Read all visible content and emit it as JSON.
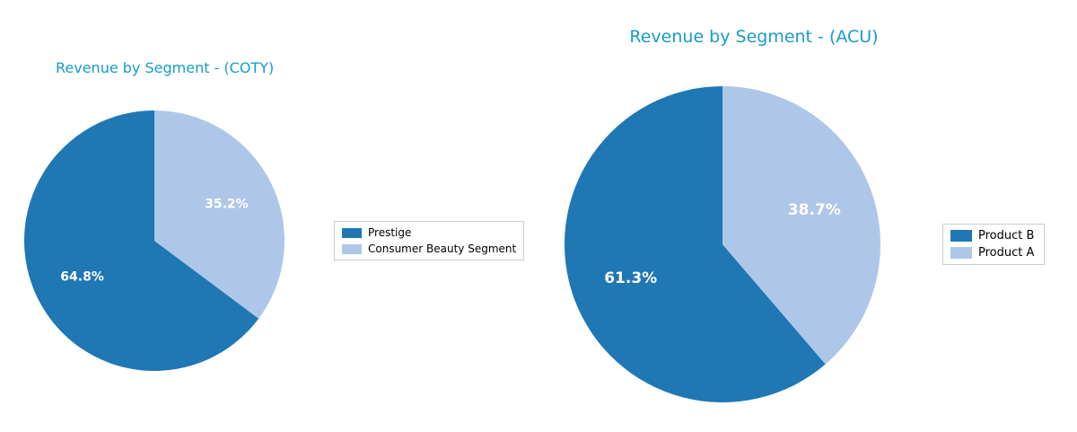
{
  "figure": {
    "background": "#ffffff"
  },
  "chart_data": [
    {
      "type": "pie",
      "title": "Revenue by Segment - (COTY)",
      "title_color": "#189cc8",
      "start_angle": 90,
      "direction": "counterclockwise",
      "legend_position": "right",
      "pct_label_color": "#ffffff",
      "series": [
        {
          "name": "Prestige",
          "value": 64.8,
          "label": "64.8%",
          "color": "#1f77b4"
        },
        {
          "name": "Consumer Beauty Segment",
          "value": 35.2,
          "label": "35.2%",
          "color": "#aec7e8"
        }
      ]
    },
    {
      "type": "pie",
      "title": "Revenue by Segment - (ACU)",
      "title_color": "#189cc8",
      "start_angle": 90,
      "direction": "counterclockwise",
      "legend_position": "right",
      "pct_label_color": "#ffffff",
      "series": [
        {
          "name": "Product B",
          "value": 61.3,
          "label": "61.3%",
          "color": "#1f77b4"
        },
        {
          "name": "Product A",
          "value": 38.7,
          "label": "38.7%",
          "color": "#aec7e8"
        }
      ]
    }
  ]
}
